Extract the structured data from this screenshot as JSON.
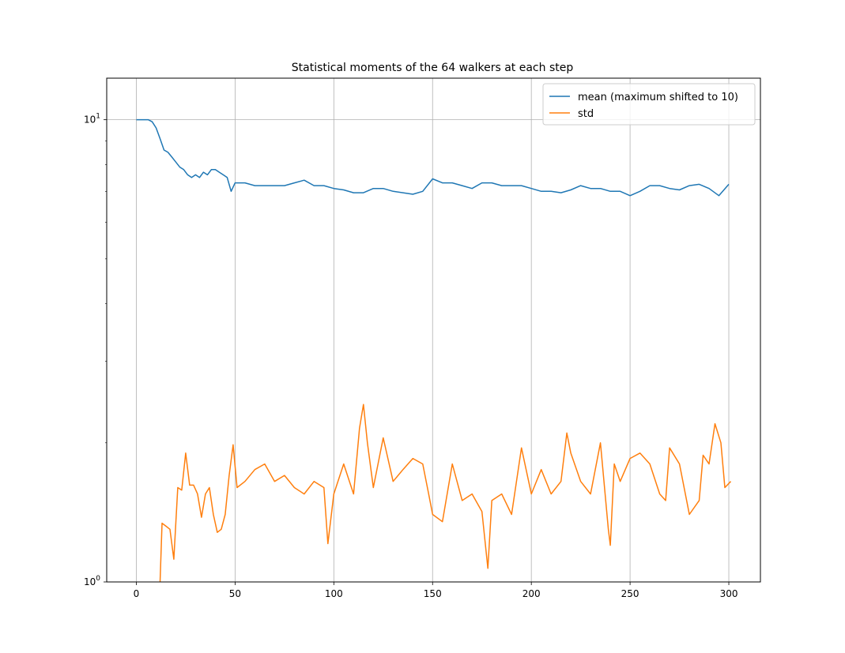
{
  "chart_data": {
    "type": "line",
    "title": "Statistical moments of the 64 walkers at each step",
    "xlabel": "",
    "ylabel": "",
    "xlim": [
      -15,
      316
    ],
    "ylim": [
      1,
      12.3
    ],
    "y_scale": "log",
    "grid": true,
    "legend_position": "upper right",
    "x_ticks": [
      0,
      50,
      100,
      150,
      200,
      250,
      300
    ],
    "x_tick_labels": [
      "0",
      "50",
      "100",
      "150",
      "200",
      "250",
      "300"
    ],
    "y_ticks": [
      1,
      10
    ],
    "y_tick_labels": [
      {
        "base": "10",
        "exp": "0"
      },
      {
        "base": "10",
        "exp": "1"
      }
    ],
    "series": [
      {
        "name": "mean (maximum shifted to 10)",
        "color": "#1f77b4",
        "points": [
          [
            0,
            10
          ],
          [
            3,
            10
          ],
          [
            6,
            10
          ],
          [
            8,
            9.9
          ],
          [
            10,
            9.6
          ],
          [
            12,
            9.1
          ],
          [
            14,
            8.6
          ],
          [
            16,
            8.5
          ],
          [
            18,
            8.3
          ],
          [
            20,
            8.1
          ],
          [
            22,
            7.9
          ],
          [
            24,
            7.8
          ],
          [
            26,
            7.6
          ],
          [
            28,
            7.5
          ],
          [
            30,
            7.6
          ],
          [
            32,
            7.5
          ],
          [
            34,
            7.7
          ],
          [
            36,
            7.6
          ],
          [
            38,
            7.8
          ],
          [
            40,
            7.8
          ],
          [
            42,
            7.7
          ],
          [
            44,
            7.6
          ],
          [
            46,
            7.5
          ],
          [
            48,
            7.0
          ],
          [
            50,
            7.3
          ],
          [
            55,
            7.3
          ],
          [
            60,
            7.2
          ],
          [
            65,
            7.2
          ],
          [
            70,
            7.2
          ],
          [
            75,
            7.2
          ],
          [
            80,
            7.3
          ],
          [
            85,
            7.4
          ],
          [
            90,
            7.2
          ],
          [
            95,
            7.2
          ],
          [
            100,
            7.1
          ],
          [
            105,
            7.05
          ],
          [
            110,
            6.95
          ],
          [
            115,
            6.95
          ],
          [
            120,
            7.1
          ],
          [
            125,
            7.1
          ],
          [
            130,
            7.0
          ],
          [
            135,
            6.95
          ],
          [
            140,
            6.9
          ],
          [
            145,
            7.0
          ],
          [
            150,
            7.45
          ],
          [
            155,
            7.3
          ],
          [
            160,
            7.3
          ],
          [
            165,
            7.2
          ],
          [
            170,
            7.1
          ],
          [
            175,
            7.3
          ],
          [
            180,
            7.3
          ],
          [
            185,
            7.2
          ],
          [
            190,
            7.2
          ],
          [
            195,
            7.2
          ],
          [
            200,
            7.1
          ],
          [
            205,
            7.0
          ],
          [
            210,
            7.0
          ],
          [
            215,
            6.95
          ],
          [
            220,
            7.05
          ],
          [
            225,
            7.2
          ],
          [
            230,
            7.1
          ],
          [
            235,
            7.1
          ],
          [
            240,
            7.0
          ],
          [
            245,
            7.0
          ],
          [
            250,
            6.85
          ],
          [
            255,
            7.0
          ],
          [
            260,
            7.2
          ],
          [
            265,
            7.2
          ],
          [
            270,
            7.1
          ],
          [
            275,
            7.05
          ],
          [
            280,
            7.2
          ],
          [
            285,
            7.25
          ],
          [
            290,
            7.1
          ],
          [
            295,
            6.85
          ],
          [
            300,
            7.25
          ]
        ]
      },
      {
        "name": "std",
        "color": "#ff7f0e",
        "points": [
          [
            12,
            1.0
          ],
          [
            13,
            1.34
          ],
          [
            15,
            1.32
          ],
          [
            17,
            1.3
          ],
          [
            19,
            1.12
          ],
          [
            21,
            1.6
          ],
          [
            23,
            1.58
          ],
          [
            25,
            1.9
          ],
          [
            27,
            1.62
          ],
          [
            29,
            1.62
          ],
          [
            31,
            1.55
          ],
          [
            33,
            1.38
          ],
          [
            35,
            1.55
          ],
          [
            37,
            1.6
          ],
          [
            39,
            1.4
          ],
          [
            41,
            1.28
          ],
          [
            43,
            1.3
          ],
          [
            45,
            1.4
          ],
          [
            47,
            1.7
          ],
          [
            49,
            1.98
          ],
          [
            51,
            1.6
          ],
          [
            55,
            1.65
          ],
          [
            60,
            1.75
          ],
          [
            65,
            1.8
          ],
          [
            70,
            1.65
          ],
          [
            75,
            1.7
          ],
          [
            80,
            1.6
          ],
          [
            85,
            1.55
          ],
          [
            90,
            1.65
          ],
          [
            95,
            1.6
          ],
          [
            97,
            1.21
          ],
          [
            100,
            1.55
          ],
          [
            105,
            1.8
          ],
          [
            110,
            1.55
          ],
          [
            113,
            2.15
          ],
          [
            115,
            2.42
          ],
          [
            117,
            2.0
          ],
          [
            120,
            1.6
          ],
          [
            125,
            2.05
          ],
          [
            130,
            1.65
          ],
          [
            135,
            1.75
          ],
          [
            140,
            1.85
          ],
          [
            145,
            1.8
          ],
          [
            148,
            1.55
          ],
          [
            150,
            1.4
          ],
          [
            155,
            1.35
          ],
          [
            160,
            1.8
          ],
          [
            165,
            1.5
          ],
          [
            170,
            1.55
          ],
          [
            175,
            1.42
          ],
          [
            178,
            1.07
          ],
          [
            180,
            1.5
          ],
          [
            185,
            1.55
          ],
          [
            190,
            1.4
          ],
          [
            195,
            1.95
          ],
          [
            200,
            1.55
          ],
          [
            205,
            1.75
          ],
          [
            210,
            1.55
          ],
          [
            215,
            1.65
          ],
          [
            218,
            2.1
          ],
          [
            220,
            1.9
          ],
          [
            225,
            1.65
          ],
          [
            230,
            1.55
          ],
          [
            235,
            2.0
          ],
          [
            239,
            1.3
          ],
          [
            240,
            1.2
          ],
          [
            242,
            1.8
          ],
          [
            245,
            1.65
          ],
          [
            250,
            1.85
          ],
          [
            255,
            1.9
          ],
          [
            260,
            1.8
          ],
          [
            265,
            1.55
          ],
          [
            268,
            1.5
          ],
          [
            270,
            1.95
          ],
          [
            275,
            1.8
          ],
          [
            280,
            1.4
          ],
          [
            285,
            1.5
          ],
          [
            287,
            1.88
          ],
          [
            290,
            1.8
          ],
          [
            293,
            2.2
          ],
          [
            296,
            2.0
          ],
          [
            298,
            1.6
          ],
          [
            301,
            1.65
          ]
        ]
      }
    ]
  }
}
